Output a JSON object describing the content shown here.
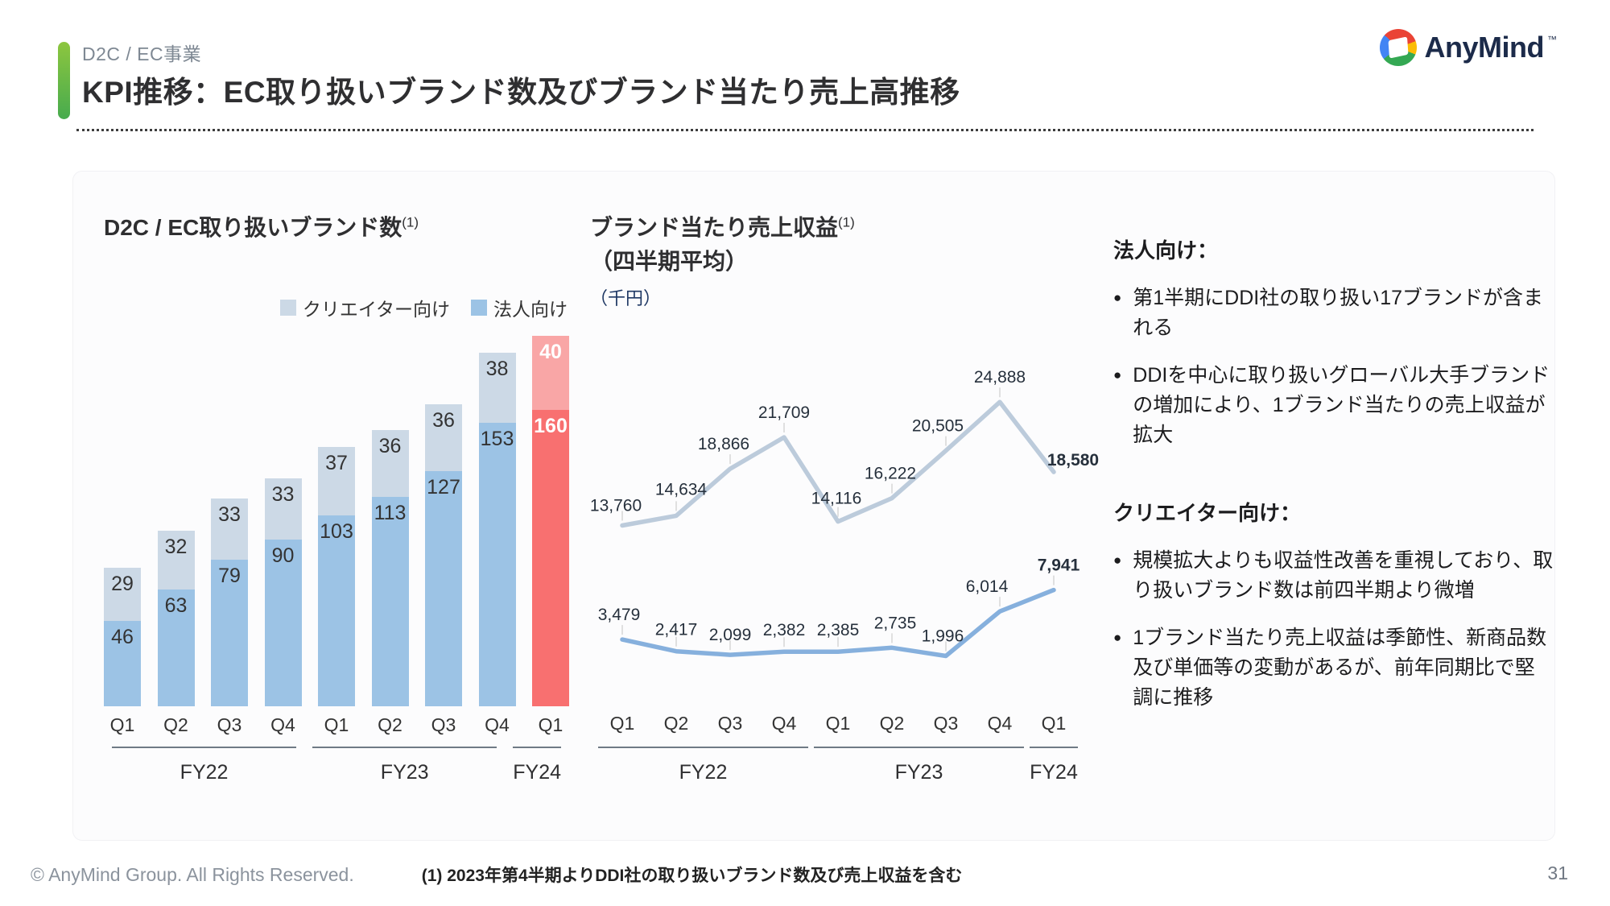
{
  "header": {
    "eyebrow": "D2C / EC事業",
    "title": "KPI推移：EC取り扱いブランド数及びブランド当たり売上高推移",
    "logo_text": "AnyMind",
    "logo_tm": "™"
  },
  "chart_data": [
    {
      "type": "bar",
      "stacked": true,
      "title": "D2C / EC取り扱いブランド数",
      "title_superscript": "(1)",
      "categories": [
        "Q1",
        "Q2",
        "Q3",
        "Q4",
        "Q1",
        "Q2",
        "Q3",
        "Q4",
        "Q1"
      ],
      "groups": [
        {
          "label": "FY22",
          "span": 4
        },
        {
          "label": "FY23",
          "span": 4
        },
        {
          "label": "FY24",
          "span": 1
        }
      ],
      "series": [
        {
          "name": "法人向け",
          "values": [
            46,
            63,
            79,
            90,
            103,
            113,
            127,
            153,
            160
          ],
          "color": "#9cc3e5",
          "highlight_color": "#f87070"
        },
        {
          "name": "クリエイター向け",
          "values": [
            29,
            32,
            33,
            33,
            37,
            36,
            36,
            38,
            40
          ],
          "color": "#ccd9e6",
          "highlight_color": "#f9a6a6"
        }
      ],
      "highlight_index": 8,
      "legend": [
        {
          "label": "クリエイター向け",
          "color": "#ccd9e6"
        },
        {
          "label": "法人向け",
          "color": "#9cc3e5"
        }
      ],
      "ylim": [
        0,
        200
      ],
      "grid": false
    },
    {
      "type": "line",
      "title": "ブランド当たり売上収益",
      "title_superscript": "(1)",
      "subtitle": "（四半期平均）",
      "unit_label": "（千円）",
      "categories": [
        "Q1",
        "Q2",
        "Q3",
        "Q4",
        "Q1",
        "Q2",
        "Q3",
        "Q4",
        "Q1"
      ],
      "groups": [
        {
          "label": "FY22",
          "span": 4
        },
        {
          "label": "FY23",
          "span": 4
        },
        {
          "label": "FY24",
          "span": 1
        }
      ],
      "series": [
        {
          "name": "法人向け",
          "values": [
            13760,
            14634,
            18866,
            21709,
            14116,
            16222,
            20505,
            24888,
            18580
          ],
          "color": "#bccbdb"
        },
        {
          "name": "クリエイター向け",
          "values": [
            3479,
            2417,
            2099,
            2382,
            2385,
            2735,
            1996,
            6014,
            7941
          ],
          "color": "#86b0dd"
        }
      ],
      "ylim": [
        0,
        26500
      ],
      "grid": false,
      "legend_position": "none"
    }
  ],
  "notes_panel": {
    "sections": [
      {
        "heading": "法人向け：",
        "bullets": [
          "第1半期にDDI社の取り扱い17ブランドが含まれる",
          "DDIを中心に取り扱いグローバル大手ブランドの増加により、1ブランド当たりの売上収益が拡大"
        ]
      },
      {
        "heading": "クリエイター向け：",
        "bullets": [
          "規模拡大よりも収益性改善を重視しており、取り扱いブランド数は前四半期より微増",
          "1ブランド当たり売上収益は季節性、新商品数及び単価等の変動があるが、前年同期比で堅調に推移"
        ]
      }
    ]
  },
  "footer": {
    "copyright": "© AnyMind Group. All Rights Reserved.",
    "footnote": "(1) 2023年第4半期よりDDI社の取り扱いブランド数及び売上収益を含む",
    "page_number": "31"
  }
}
